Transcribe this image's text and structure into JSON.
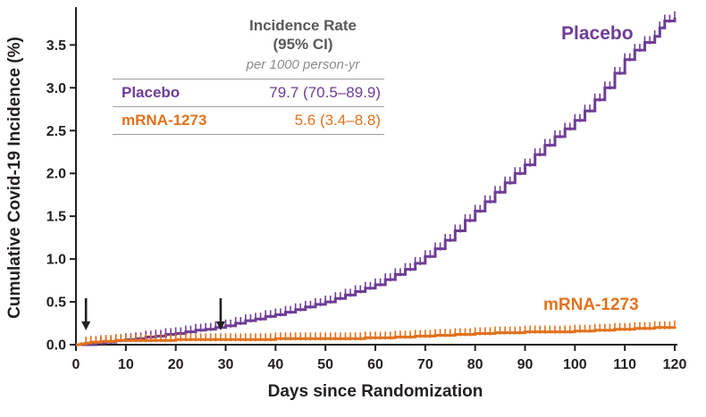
{
  "chart_data": {
    "type": "line",
    "subtype": "kaplan-meier-step",
    "title": "",
    "xlabel": "Days since Randomization",
    "ylabel": "Cumulative Covid-19 Incidence (%)",
    "xlim": [
      0,
      120
    ],
    "ylim": [
      0,
      3.9
    ],
    "xticks": [
      0,
      10,
      20,
      30,
      40,
      50,
      60,
      70,
      80,
      90,
      100,
      110,
      120
    ],
    "yticks": [
      "0.0",
      "0.5",
      "1.0",
      "1.5",
      "2.0",
      "2.5",
      "3.0",
      "3.5"
    ],
    "grid": false,
    "legend_position": "none",
    "axis_color": "#231f20",
    "series": [
      {
        "name": "Placebo",
        "color": "#6e3d96",
        "points": [
          [
            0,
            0
          ],
          [
            4,
            0.02
          ],
          [
            6,
            0.03
          ],
          [
            8,
            0.05
          ],
          [
            10,
            0.06
          ],
          [
            12,
            0.07
          ],
          [
            14,
            0.09
          ],
          [
            16,
            0.1
          ],
          [
            18,
            0.12
          ],
          [
            20,
            0.13
          ],
          [
            22,
            0.15
          ],
          [
            24,
            0.17
          ],
          [
            26,
            0.18
          ],
          [
            28,
            0.2
          ],
          [
            30,
            0.22
          ],
          [
            32,
            0.25
          ],
          [
            34,
            0.28
          ],
          [
            36,
            0.3
          ],
          [
            38,
            0.33
          ],
          [
            40,
            0.35
          ],
          [
            42,
            0.38
          ],
          [
            44,
            0.41
          ],
          [
            46,
            0.44
          ],
          [
            48,
            0.47
          ],
          [
            50,
            0.5
          ],
          [
            52,
            0.54
          ],
          [
            54,
            0.58
          ],
          [
            56,
            0.62
          ],
          [
            58,
            0.66
          ],
          [
            60,
            0.7
          ],
          [
            62,
            0.76
          ],
          [
            64,
            0.82
          ],
          [
            66,
            0.88
          ],
          [
            68,
            0.95
          ],
          [
            70,
            1.03
          ],
          [
            72,
            1.12
          ],
          [
            74,
            1.22
          ],
          [
            76,
            1.33
          ],
          [
            78,
            1.45
          ],
          [
            80,
            1.56
          ],
          [
            82,
            1.67
          ],
          [
            84,
            1.78
          ],
          [
            86,
            1.89
          ],
          [
            88,
            2.0
          ],
          [
            90,
            2.1
          ],
          [
            92,
            2.22
          ],
          [
            94,
            2.33
          ],
          [
            96,
            2.43
          ],
          [
            98,
            2.52
          ],
          [
            100,
            2.62
          ],
          [
            102,
            2.73
          ],
          [
            104,
            2.86
          ],
          [
            106,
            3.0
          ],
          [
            108,
            3.17
          ],
          [
            110,
            3.33
          ],
          [
            112,
            3.44
          ],
          [
            114,
            3.53
          ],
          [
            116,
            3.6
          ],
          [
            117,
            3.7
          ],
          [
            118,
            3.78
          ],
          [
            120,
            3.82
          ]
        ]
      },
      {
        "name": "mRNA-1273",
        "color": "#e2711d",
        "points": [
          [
            0,
            0
          ],
          [
            1,
            0.01
          ],
          [
            2,
            0.02
          ],
          [
            3,
            0.03
          ],
          [
            5,
            0.04
          ],
          [
            8,
            0.05
          ],
          [
            12,
            0.05
          ],
          [
            20,
            0.06
          ],
          [
            30,
            0.06
          ],
          [
            40,
            0.07
          ],
          [
            50,
            0.07
          ],
          [
            58,
            0.08
          ],
          [
            64,
            0.09
          ],
          [
            68,
            0.1
          ],
          [
            72,
            0.11
          ],
          [
            76,
            0.12
          ],
          [
            80,
            0.13
          ],
          [
            84,
            0.14
          ],
          [
            90,
            0.15
          ],
          [
            96,
            0.15
          ],
          [
            100,
            0.16
          ],
          [
            104,
            0.17
          ],
          [
            108,
            0.18
          ],
          [
            112,
            0.19
          ],
          [
            116,
            0.2
          ],
          [
            120,
            0.21
          ]
        ]
      }
    ],
    "annotations": {
      "dose_arrow_days": [
        2,
        29
      ]
    },
    "inset_table": {
      "title_line1": "Incidence Rate",
      "title_line2": "(95% CI)",
      "unit_line": "per 1000 person-yr",
      "rows": [
        {
          "group": "Placebo",
          "value": "79.7 (70.5–89.9)"
        },
        {
          "group": "mRNA-1273",
          "value": "5.6 (3.4–8.8)"
        }
      ]
    }
  }
}
